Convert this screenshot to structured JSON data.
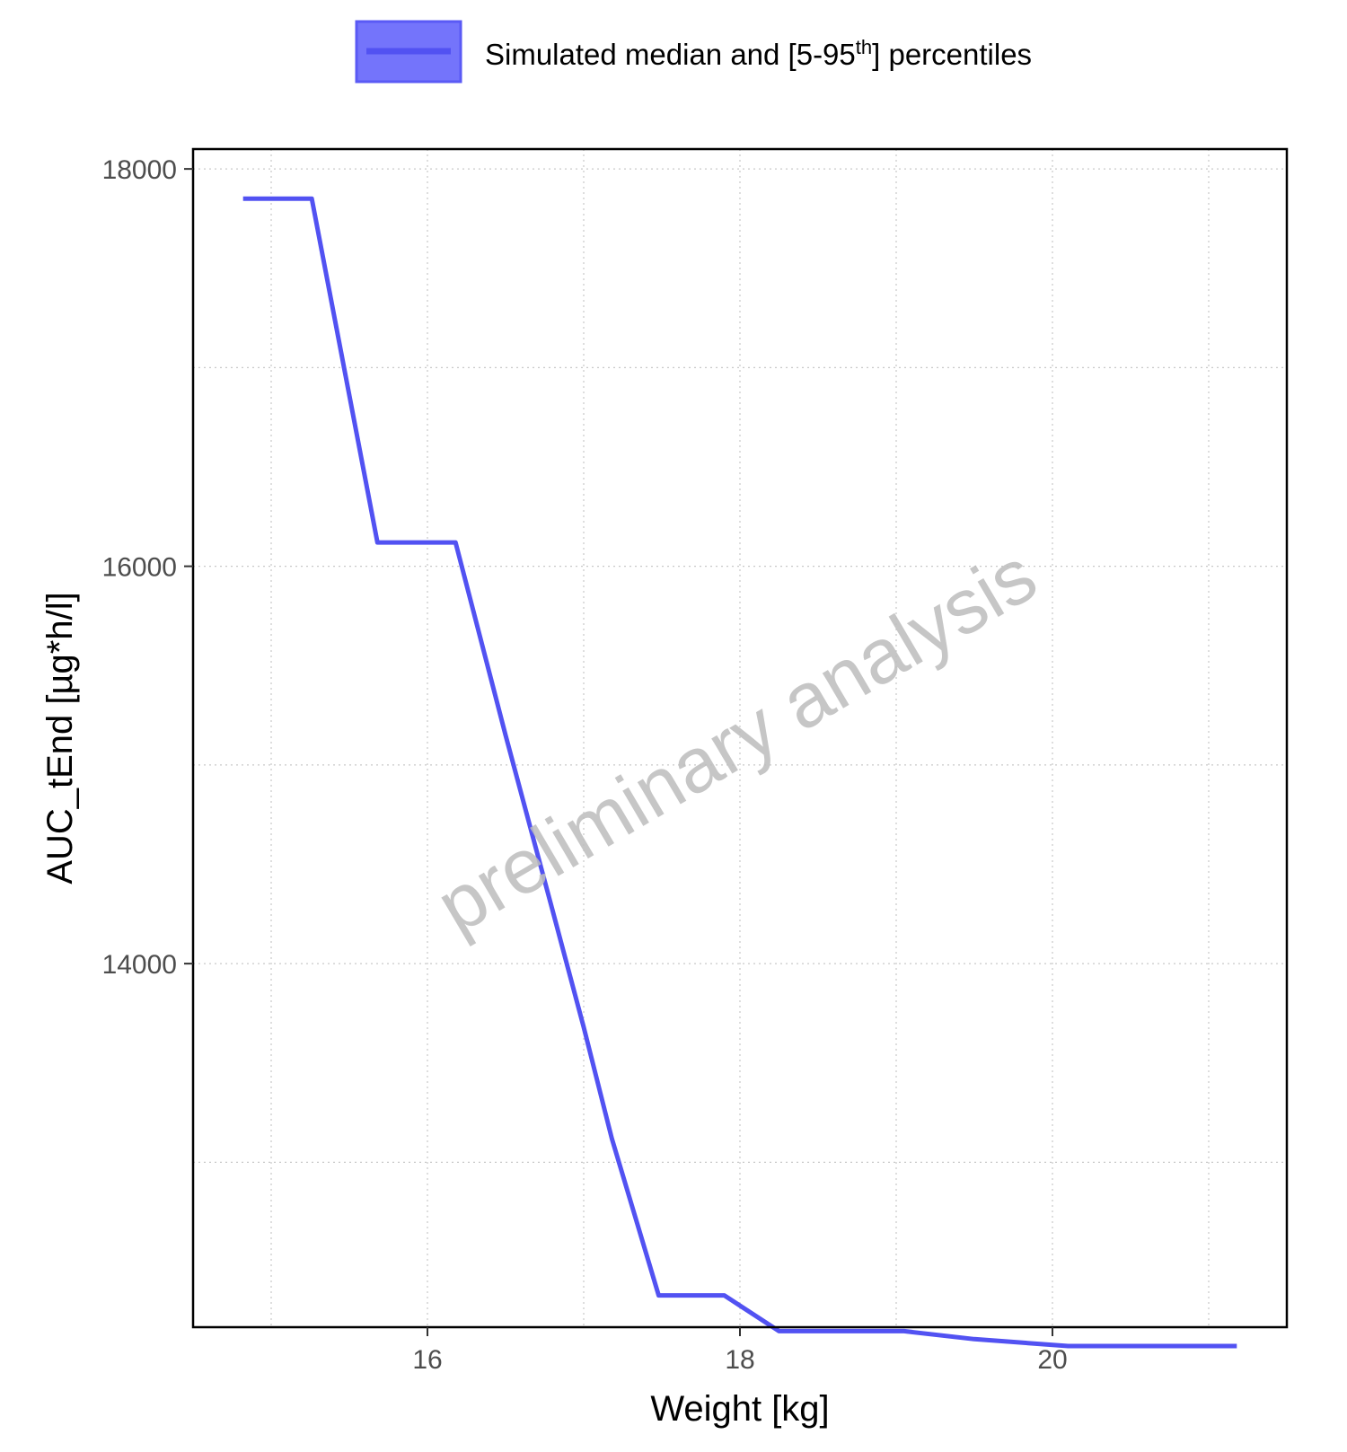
{
  "legend": {
    "text_prefix": "Simulated median and [5-95",
    "text_sup": "th",
    "text_suffix": "] percentiles",
    "swatch_fill": "#7474fb",
    "swatch_border": "#5a5af5",
    "line_color": "#5252f2"
  },
  "watermark": {
    "text": "preliminary analysis",
    "color": "#bdbdbd"
  },
  "chart_data": {
    "type": "line",
    "title": "",
    "xlabel": "Weight [kg]",
    "ylabel": "AUC_tEnd [µg*h/l]",
    "xlim": [
      14.5,
      21.5
    ],
    "ylim": [
      12170,
      18100
    ],
    "x_ticks": [
      16,
      18,
      20
    ],
    "x_tick_labels": [
      "16",
      "18",
      "20"
    ],
    "y_ticks": [
      14000,
      16000,
      18000
    ],
    "y_tick_labels": [
      "14000",
      "16000",
      "18000"
    ],
    "x_minor_grid": [
      15,
      17,
      19,
      21
    ],
    "y_minor_grid": [
      13000,
      15000,
      17000
    ],
    "grid": true,
    "legend_position": "top",
    "series": [
      {
        "name": "Simulated median and [5-95th] percentiles",
        "color": "#5252f2",
        "x": [
          14.82,
          15.26,
          15.68,
          16.18,
          16.5,
          16.8,
          17.0,
          17.18,
          17.48,
          17.9,
          18.25,
          19.05,
          19.5,
          20.1,
          21.18
        ],
        "y": [
          17850,
          17850,
          16120,
          16120,
          15150,
          14270,
          13680,
          13120,
          12330,
          12330,
          12150,
          12150,
          12110,
          12075,
          12075
        ]
      }
    ]
  }
}
